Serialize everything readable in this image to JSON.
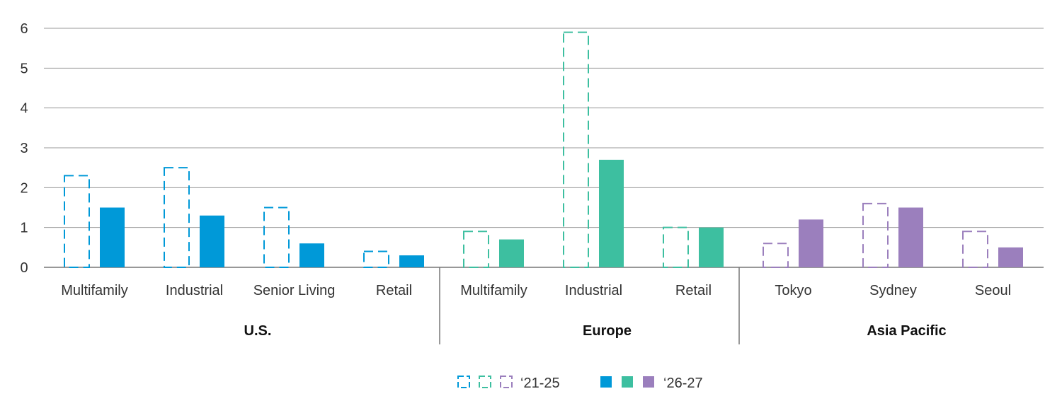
{
  "chart_data": {
    "type": "bar",
    "ylim": [
      0,
      6
    ],
    "yticks": [
      0,
      1,
      2,
      3,
      4,
      5,
      6
    ],
    "grid": true,
    "legend_placement": "bottom-center",
    "colors": {
      "U.S.": "#0099d8",
      "Europe": "#3dbfa0",
      "Asia Pacific": "#9b7fbd"
    },
    "groups": [
      {
        "region": "U.S.",
        "categories": [
          "Multifamily",
          "Industrial",
          "Senior Living",
          "Retail"
        ],
        "values_21_25": [
          2.3,
          2.5,
          1.5,
          0.4
        ],
        "values_26_27": [
          1.5,
          1.3,
          0.6,
          0.3
        ]
      },
      {
        "region": "Europe",
        "categories": [
          "Multifamily",
          "Industrial",
          "Retail"
        ],
        "values_21_25": [
          0.9,
          5.9,
          1.0
        ],
        "values_26_27": [
          0.7,
          2.7,
          1.0
        ]
      },
      {
        "region": "Asia Pacific",
        "categories": [
          "Tokyo",
          "Sydney",
          "Seoul"
        ],
        "values_21_25": [
          0.6,
          1.6,
          0.9
        ],
        "values_26_27": [
          1.2,
          1.5,
          0.5
        ]
      }
    ],
    "legend": {
      "series_21_25": "‘21-25",
      "series_26_27": "‘26-27"
    }
  }
}
